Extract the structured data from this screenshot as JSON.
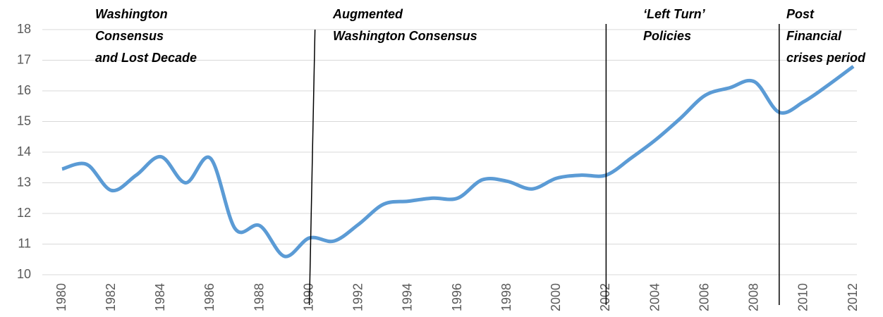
{
  "chart_data": {
    "type": "line",
    "x": [
      1980,
      1981,
      1982,
      1983,
      1984,
      1985,
      1986,
      1987,
      1988,
      1989,
      1990,
      1991,
      1992,
      1993,
      1994,
      1995,
      1996,
      1997,
      1998,
      1999,
      2000,
      2001,
      2002,
      2003,
      2004,
      2005,
      2006,
      2007,
      2008,
      2009,
      2010,
      2011,
      2012
    ],
    "series": [
      {
        "color": "#5b9bd5",
        "values": [
          13.45,
          13.6,
          12.75,
          13.25,
          13.85,
          13.0,
          13.8,
          11.5,
          11.6,
          10.6,
          11.2,
          11.1,
          11.65,
          12.3,
          12.4,
          12.5,
          12.5,
          13.1,
          13.05,
          12.8,
          13.15,
          13.25,
          13.25,
          13.8,
          14.4,
          15.1,
          15.85,
          16.1,
          16.3,
          15.3,
          15.65,
          16.2,
          16.8
        ]
      }
    ],
    "xlim": [
      1980,
      2012
    ],
    "xticks": [
      1980,
      1982,
      1984,
      1986,
      1988,
      1990,
      1992,
      1994,
      1996,
      1998,
      2000,
      2002,
      2004,
      2006,
      2008,
      2010,
      2012
    ],
    "ylim": [
      10,
      18
    ],
    "yticks": [
      10,
      11,
      12,
      13,
      14,
      15,
      16,
      17,
      18
    ],
    "grid": true,
    "annotations": [
      {
        "lines": [
          "Washington",
          "Consensus",
          "and Lost Decade"
        ]
      },
      {
        "lines": [
          "Augmented",
          "Washington Consensus"
        ],
        "x": 1990
      },
      {
        "lines": [
          "‘Left Turn’",
          "Policies"
        ],
        "x": 2002
      },
      {
        "lines": [
          "Post",
          "Financial",
          "crises period"
        ],
        "x": 2009
      }
    ]
  }
}
